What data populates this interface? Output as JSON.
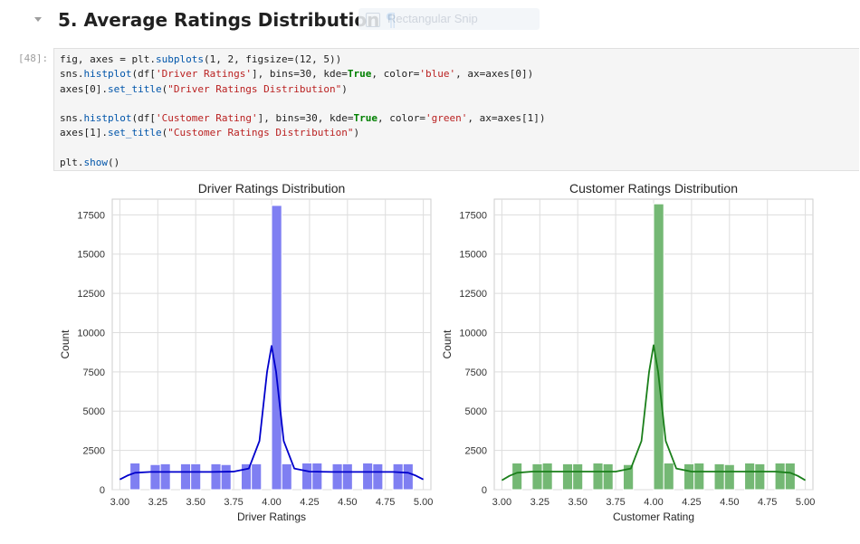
{
  "heading": {
    "text": "5. Average Ratings Distribution",
    "anchor": "¶"
  },
  "overlay": {
    "snip_label": "Rectangular Snip"
  },
  "cell": {
    "prompt": "[48]:",
    "code_lines": [
      [
        {
          "t": "fig, axes = plt.",
          "c": ""
        },
        {
          "t": "subplots",
          "c": "f"
        },
        {
          "t": "(1, 2, figsize=(12, 5))",
          "c": ""
        }
      ],
      [
        {
          "t": "sns.",
          "c": ""
        },
        {
          "t": "histplot",
          "c": "f"
        },
        {
          "t": "(df[",
          "c": ""
        },
        {
          "t": "'Driver Ratings'",
          "c": "s"
        },
        {
          "t": "], bins=30, kde=",
          "c": ""
        },
        {
          "t": "True",
          "c": "k"
        },
        {
          "t": ", color=",
          "c": ""
        },
        {
          "t": "'blue'",
          "c": "s"
        },
        {
          "t": ", ax=axes[0])",
          "c": ""
        }
      ],
      [
        {
          "t": "axes[0].",
          "c": ""
        },
        {
          "t": "set_title",
          "c": "f"
        },
        {
          "t": "(",
          "c": ""
        },
        {
          "t": "\"Driver Ratings Distribution\"",
          "c": "s"
        },
        {
          "t": ")",
          "c": ""
        }
      ],
      [],
      [
        {
          "t": "sns.",
          "c": ""
        },
        {
          "t": "histplot",
          "c": "f"
        },
        {
          "t": "(df[",
          "c": ""
        },
        {
          "t": "'Customer Rating'",
          "c": "s"
        },
        {
          "t": "], bins=30, kde=",
          "c": ""
        },
        {
          "t": "True",
          "c": "k"
        },
        {
          "t": ", color=",
          "c": ""
        },
        {
          "t": "'green'",
          "c": "s"
        },
        {
          "t": ", ax=axes[1])",
          "c": ""
        }
      ],
      [
        {
          "t": "axes[1].",
          "c": ""
        },
        {
          "t": "set_title",
          "c": "f"
        },
        {
          "t": "(",
          "c": ""
        },
        {
          "t": "\"Customer Ratings Distribution\"",
          "c": "s"
        },
        {
          "t": ")",
          "c": ""
        }
      ],
      [],
      [
        {
          "t": "plt.",
          "c": ""
        },
        {
          "t": "show",
          "c": "f"
        },
        {
          "t": "()",
          "c": ""
        }
      ]
    ]
  },
  "colors": {
    "driver_bar": "#7f7ff2",
    "driver_kde": "#0000cc",
    "customer_bar": "#74b874",
    "customer_kde": "#1a7f1a",
    "grid": "#dddddd"
  },
  "chart_data": [
    {
      "type": "bar",
      "title": "Driver Ratings Distribution",
      "xlabel": "Driver Ratings",
      "ylabel": "Count",
      "xlim": [
        2.95,
        5.05
      ],
      "ylim": [
        0,
        18500
      ],
      "xticks": [
        "3.00",
        "3.25",
        "3.50",
        "3.75",
        "4.00",
        "4.25",
        "4.50",
        "4.75",
        "5.00"
      ],
      "yticks": [
        "0",
        "2500",
        "5000",
        "7500",
        "10000",
        "12500",
        "15000",
        "17500"
      ],
      "grid": true,
      "bins": [
        {
          "x0": 3.067,
          "x1": 3.133,
          "count": 1700
        },
        {
          "x0": 3.2,
          "x1": 3.267,
          "count": 1600
        },
        {
          "x0": 3.267,
          "x1": 3.333,
          "count": 1650
        },
        {
          "x0": 3.4,
          "x1": 3.467,
          "count": 1650
        },
        {
          "x0": 3.467,
          "x1": 3.533,
          "count": 1650
        },
        {
          "x0": 3.6,
          "x1": 3.667,
          "count": 1650
        },
        {
          "x0": 3.667,
          "x1": 3.733,
          "count": 1600
        },
        {
          "x0": 3.8,
          "x1": 3.867,
          "count": 1650
        },
        {
          "x0": 3.867,
          "x1": 3.933,
          "count": 1650
        },
        {
          "x0": 4.0,
          "x1": 4.067,
          "count": 18100
        },
        {
          "x0": 4.067,
          "x1": 4.133,
          "count": 1650
        },
        {
          "x0": 4.2,
          "x1": 4.267,
          "count": 1700
        },
        {
          "x0": 4.267,
          "x1": 4.333,
          "count": 1700
        },
        {
          "x0": 4.4,
          "x1": 4.467,
          "count": 1650
        },
        {
          "x0": 4.467,
          "x1": 4.533,
          "count": 1650
        },
        {
          "x0": 4.6,
          "x1": 4.667,
          "count": 1700
        },
        {
          "x0": 4.667,
          "x1": 4.733,
          "count": 1650
        },
        {
          "x0": 4.8,
          "x1": 4.867,
          "count": 1650
        },
        {
          "x0": 4.867,
          "x1": 4.933,
          "count": 1650
        }
      ],
      "kde": [
        [
          3.0,
          650
        ],
        [
          3.05,
          900
        ],
        [
          3.1,
          1080
        ],
        [
          3.2,
          1130
        ],
        [
          3.4,
          1130
        ],
        [
          3.6,
          1130
        ],
        [
          3.75,
          1150
        ],
        [
          3.85,
          1350
        ],
        [
          3.92,
          3100
        ],
        [
          3.97,
          7500
        ],
        [
          4.0,
          9150
        ],
        [
          4.03,
          7500
        ],
        [
          4.08,
          3100
        ],
        [
          4.15,
          1350
        ],
        [
          4.25,
          1150
        ],
        [
          4.4,
          1130
        ],
        [
          4.6,
          1130
        ],
        [
          4.8,
          1130
        ],
        [
          4.9,
          1080
        ],
        [
          4.95,
          900
        ],
        [
          5.0,
          650
        ]
      ]
    },
    {
      "type": "bar",
      "title": "Customer Ratings Distribution",
      "xlabel": "Customer Rating",
      "ylabel": "Count",
      "xlim": [
        2.95,
        5.05
      ],
      "ylim": [
        0,
        18500
      ],
      "xticks": [
        "3.00",
        "3.25",
        "3.50",
        "3.75",
        "4.00",
        "4.25",
        "4.50",
        "4.75",
        "5.00"
      ],
      "yticks": [
        "0",
        "2500",
        "5000",
        "7500",
        "10000",
        "12500",
        "15000",
        "17500"
      ],
      "grid": true,
      "bins": [
        {
          "x0": 3.067,
          "x1": 3.133,
          "count": 1700
        },
        {
          "x0": 3.2,
          "x1": 3.267,
          "count": 1650
        },
        {
          "x0": 3.267,
          "x1": 3.333,
          "count": 1700
        },
        {
          "x0": 3.4,
          "x1": 3.467,
          "count": 1650
        },
        {
          "x0": 3.467,
          "x1": 3.533,
          "count": 1650
        },
        {
          "x0": 3.6,
          "x1": 3.667,
          "count": 1700
        },
        {
          "x0": 3.667,
          "x1": 3.733,
          "count": 1650
        },
        {
          "x0": 3.8,
          "x1": 3.867,
          "count": 1600
        },
        {
          "x0": 4.0,
          "x1": 4.067,
          "count": 18200
        },
        {
          "x0": 4.067,
          "x1": 4.133,
          "count": 1700
        },
        {
          "x0": 4.2,
          "x1": 4.267,
          "count": 1650
        },
        {
          "x0": 4.267,
          "x1": 4.333,
          "count": 1700
        },
        {
          "x0": 4.4,
          "x1": 4.467,
          "count": 1650
        },
        {
          "x0": 4.467,
          "x1": 4.533,
          "count": 1600
        },
        {
          "x0": 4.6,
          "x1": 4.667,
          "count": 1700
        },
        {
          "x0": 4.667,
          "x1": 4.733,
          "count": 1650
        },
        {
          "x0": 4.8,
          "x1": 4.867,
          "count": 1700
        },
        {
          "x0": 4.867,
          "x1": 4.933,
          "count": 1700
        }
      ],
      "kde": [
        [
          3.0,
          600
        ],
        [
          3.05,
          880
        ],
        [
          3.1,
          1080
        ],
        [
          3.2,
          1150
        ],
        [
          3.4,
          1150
        ],
        [
          3.6,
          1150
        ],
        [
          3.75,
          1150
        ],
        [
          3.85,
          1350
        ],
        [
          3.92,
          3100
        ],
        [
          3.97,
          7500
        ],
        [
          4.0,
          9200
        ],
        [
          4.03,
          7500
        ],
        [
          4.08,
          3100
        ],
        [
          4.15,
          1350
        ],
        [
          4.25,
          1150
        ],
        [
          4.4,
          1150
        ],
        [
          4.6,
          1150
        ],
        [
          4.8,
          1150
        ],
        [
          4.9,
          1080
        ],
        [
          4.95,
          880
        ],
        [
          5.0,
          600
        ]
      ]
    }
  ]
}
